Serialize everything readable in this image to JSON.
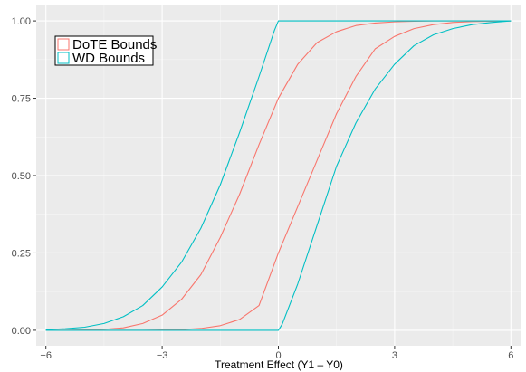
{
  "chart_data": {
    "type": "line",
    "title": "",
    "xlabel": "Treatment Effect (Y1 – Y0)",
    "ylabel": "",
    "xlim": [
      -6.25,
      6.25
    ],
    "ylim": [
      -0.05,
      1.05
    ],
    "x_ticks": [
      -6,
      -3,
      0,
      3,
      6
    ],
    "x_tick_labels": [
      "−6",
      "−3",
      "0",
      "3",
      "6"
    ],
    "y_ticks": [
      0,
      0.25,
      0.5,
      0.75,
      1
    ],
    "y_tick_labels": [
      "0.00",
      "0.25",
      "0.50",
      "0.75",
      "1.00"
    ],
    "grid": true,
    "legend_position": "top-left",
    "series": [
      {
        "name": "DoTE Bounds",
        "color": "#F8766D",
        "curves": [
          {
            "x": [
              -6,
              -5.5,
              -5,
              -4.5,
              -4,
              -3.5,
              -3,
              -2.5,
              -2,
              -1.5,
              -1,
              -0.5,
              0,
              0.5,
              1,
              1.5,
              2,
              2.5,
              3,
              3.5,
              4,
              4.5,
              5,
              5.5,
              6
            ],
            "y": [
              0.0,
              0.0,
              0.001,
              0.003,
              0.008,
              0.022,
              0.049,
              0.1,
              0.18,
              0.3,
              0.44,
              0.6,
              0.75,
              0.86,
              0.93,
              0.965,
              0.985,
              0.993,
              0.997,
              0.999,
              1.0,
              1.0,
              1.0,
              1.0,
              1.0
            ]
          },
          {
            "x": [
              -6,
              -5.5,
              -5,
              -4.5,
              -4,
              -3.5,
              -3,
              -2.5,
              -2,
              -1.5,
              -1,
              -0.5,
              0,
              0.5,
              1,
              1.5,
              2,
              2.5,
              3,
              3.5,
              4,
              4.5,
              5,
              5.5,
              6
            ],
            "y": [
              0.0,
              0.0,
              0.0,
              0.0,
              0.0,
              0.0,
              0.001,
              0.002,
              0.006,
              0.015,
              0.035,
              0.08,
              0.25,
              0.4,
              0.55,
              0.7,
              0.82,
              0.91,
              0.95,
              0.975,
              0.988,
              0.995,
              0.998,
              0.999,
              1.0
            ]
          }
        ]
      },
      {
        "name": "WD Bounds",
        "color": "#00BFC4",
        "curves": [
          {
            "x": [
              -6,
              -5.5,
              -5,
              -4.5,
              -4,
              -3.5,
              -3,
              -2.5,
              -2,
              -1.5,
              -1,
              -0.5,
              -0.1,
              0,
              0.5,
              1,
              2,
              3,
              4,
              5,
              6
            ],
            "y": [
              0.002,
              0.005,
              0.01,
              0.022,
              0.044,
              0.08,
              0.14,
              0.22,
              0.33,
              0.47,
              0.64,
              0.82,
              0.97,
              1.0,
              1.0,
              1.0,
              1.0,
              1.0,
              1.0,
              1.0,
              1.0
            ]
          },
          {
            "x": [
              -6,
              -5,
              -4,
              -3,
              -2,
              -1,
              -0.1,
              0,
              0.1,
              0.5,
              1,
              1.5,
              2,
              2.5,
              3,
              3.5,
              4,
              4.5,
              5,
              5.5,
              6
            ],
            "y": [
              0.0,
              0.0,
              0.0,
              0.0,
              0.0,
              0.0,
              0.0,
              0.0,
              0.02,
              0.15,
              0.34,
              0.53,
              0.67,
              0.78,
              0.86,
              0.92,
              0.955,
              0.975,
              0.988,
              0.995,
              1.0
            ]
          }
        ]
      }
    ]
  }
}
